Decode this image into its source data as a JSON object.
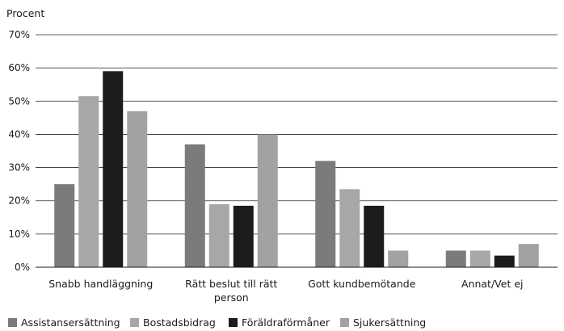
{
  "chart_data": {
    "type": "bar",
    "ylabel": "Procent",
    "xlabel": "",
    "ylim": [
      0,
      70
    ],
    "yticks": [
      "0%",
      "10%",
      "20%",
      "30%",
      "40%",
      "50%",
      "60%",
      "70%"
    ],
    "categories": [
      [
        "Snabb handläggning"
      ],
      [
        "Rätt beslut till rätt",
        "person"
      ],
      [
        "Gott kundbemötande"
      ],
      [
        "Annat/Vet ej"
      ]
    ],
    "series": [
      {
        "name": "Assistansersättning",
        "color": "#7b7b7d",
        "values": [
          25,
          37,
          32,
          5
        ]
      },
      {
        "name": "Bostadsbidrag",
        "color": "#a7a7a9",
        "values": [
          51.5,
          19,
          23.5,
          5
        ]
      },
      {
        "name": "Föräldraförmåner",
        "color": "#1c1c1c",
        "values": [
          59,
          18.5,
          18.5,
          3.5
        ]
      },
      {
        "name": "Sjukersättning",
        "color": "#a2a2a4",
        "values": [
          47,
          40,
          5,
          7
        ]
      }
    ],
    "grid": true,
    "legend_position": "bottom-left"
  }
}
